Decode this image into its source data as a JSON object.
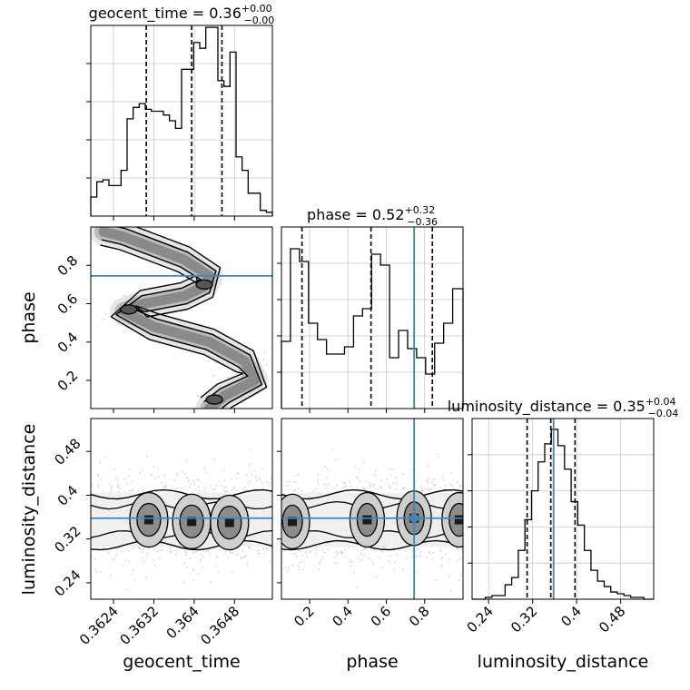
{
  "chart_data": {
    "type": "corner",
    "parameters": [
      "geocent_time",
      "phase",
      "luminosity_distance"
    ],
    "truth": {
      "phase": 0.745,
      "luminosity_distance": 0.358
    },
    "truth_color": "#4682b4",
    "panels": [
      {
        "id": "hist-geocent_time",
        "type": "histogram",
        "title": {
          "main": "geocent_time = 0.36",
          "sup": "+0.00",
          "sub": "−0.00"
        },
        "xlim": [
          0.36195,
          0.36555
        ],
        "ylim": [
          0,
          1
        ],
        "x_ticks": [
          0.3624,
          0.3632,
          0.364,
          0.3648
        ],
        "quantiles": [
          0.36305,
          0.36395,
          0.36455
        ],
        "bin_edges": [
          0.36195,
          0.36207,
          0.36219,
          0.36231,
          0.36243,
          0.36255,
          0.36267,
          0.36279,
          0.36291,
          0.36303,
          0.36315,
          0.36327,
          0.36339,
          0.36351,
          0.36363,
          0.36375,
          0.36387,
          0.36399,
          0.36411,
          0.36423,
          0.36435,
          0.36447,
          0.36459,
          0.36471,
          0.36483,
          0.36495,
          0.36507,
          0.36519,
          0.36531,
          0.36543,
          0.36555
        ],
        "values": [
          0.1,
          0.18,
          0.19,
          0.16,
          0.16,
          0.24,
          0.51,
          0.57,
          0.59,
          0.56,
          0.55,
          0.55,
          0.53,
          0.5,
          0.46,
          0.77,
          0.77,
          0.91,
          0.88,
          0.99,
          0.99,
          0.71,
          0.68,
          0.86,
          0.31,
          0.24,
          0.12,
          0.12,
          0.03,
          0.02
        ]
      },
      {
        "id": "hist-phase",
        "type": "histogram",
        "title": {
          "main": "phase = 0.52",
          "sup": "+0.32",
          "sub": "−0.36"
        },
        "xlim": [
          0.053,
          1.0
        ],
        "ylim": [
          0,
          1
        ],
        "x_ticks": [
          0.2,
          0.4,
          0.6,
          0.8
        ],
        "quantiles": [
          0.16,
          0.52,
          0.84
        ],
        "bin_edges": [
          0.053,
          0.1,
          0.147,
          0.194,
          0.241,
          0.288,
          0.335,
          0.382,
          0.429,
          0.476,
          0.523,
          0.57,
          0.617,
          0.664,
          0.711,
          0.758,
          0.805,
          0.852,
          0.899,
          0.946,
          1.0
        ],
        "values": [
          0.37,
          0.88,
          0.81,
          0.47,
          0.38,
          0.3,
          0.3,
          0.34,
          0.51,
          0.55,
          0.85,
          0.79,
          0.28,
          0.43,
          0.33,
          0.28,
          0.19,
          0.36,
          0.47,
          0.66
        ]
      },
      {
        "id": "hist-luminosity_distance",
        "type": "histogram",
        "title": {
          "main": "luminosity_distance = 0.35",
          "sup": "+0.04",
          "sub": "−0.04"
        },
        "xlim": [
          0.21,
          0.54
        ],
        "ylim": [
          0,
          1
        ],
        "x_ticks": [
          0.24,
          0.32,
          0.4,
          0.48
        ],
        "quantiles": [
          0.31,
          0.353,
          0.397
        ],
        "bin_edges": [
          0.21,
          0.222,
          0.234,
          0.246,
          0.258,
          0.27,
          0.282,
          0.294,
          0.306,
          0.318,
          0.33,
          0.342,
          0.354,
          0.366,
          0.378,
          0.39,
          0.402,
          0.414,
          0.426,
          0.438,
          0.45,
          0.462,
          0.474,
          0.486,
          0.498,
          0.51,
          0.522,
          0.54
        ],
        "values": [
          0.0,
          0.0,
          0.01,
          0.02,
          0.02,
          0.08,
          0.12,
          0.27,
          0.44,
          0.6,
          0.76,
          0.86,
          0.94,
          0.85,
          0.72,
          0.54,
          0.41,
          0.27,
          0.16,
          0.1,
          0.07,
          0.04,
          0.03,
          0.02,
          0.01,
          0.01,
          0.0
        ]
      },
      {
        "id": "density-phase-vs-geocent_time",
        "type": "density2d",
        "xlim": [
          0.36195,
          0.36555
        ],
        "ylim": [
          0.053,
          1.0
        ],
        "y_ticks": [
          0.2,
          0.4,
          0.6,
          0.8
        ],
        "ylabel": "phase",
        "ridge": [
          [
            0.3622,
            0.975
          ],
          [
            0.3626,
            0.95
          ],
          [
            0.3631,
            0.9
          ],
          [
            0.3638,
            0.83
          ],
          [
            0.3643,
            0.745
          ],
          [
            0.3642,
            0.69
          ],
          [
            0.3638,
            0.64
          ],
          [
            0.363,
            0.6
          ],
          [
            0.3626,
            0.56
          ],
          [
            0.3632,
            0.48
          ],
          [
            0.3643,
            0.4
          ],
          [
            0.365,
            0.3
          ],
          [
            0.3652,
            0.2
          ],
          [
            0.3646,
            0.12
          ],
          [
            0.3643,
            0.055
          ]
        ],
        "blobs": [
          [
            0.3642,
            0.7
          ],
          [
            0.3627,
            0.57
          ],
          [
            0.3644,
            0.1
          ]
        ]
      },
      {
        "id": "density-luminosity_distance-vs-geocent_time",
        "type": "density2d",
        "xlim": [
          0.36195,
          0.36555
        ],
        "ylim": [
          0.21,
          0.54
        ],
        "x_ticks": [
          0.3624,
          0.3632,
          0.364,
          0.3648
        ],
        "y_ticks": [
          0.24,
          0.32,
          0.4,
          0.48
        ],
        "xlabel": "geocent_time",
        "ylabel": "luminosity_distance",
        "blobs": [
          [
            0.3631,
            0.355
          ],
          [
            0.36395,
            0.352
          ],
          [
            0.3647,
            0.35
          ]
        ]
      },
      {
        "id": "density-luminosity_distance-vs-phase",
        "type": "density2d",
        "xlim": [
          0.053,
          1.0
        ],
        "ylim": [
          0.21,
          0.54
        ],
        "x_ticks": [
          0.2,
          0.4,
          0.6,
          0.8
        ],
        "xlabel": "phase",
        "blobs": [
          [
            0.11,
            0.352
          ],
          [
            0.5,
            0.355
          ],
          [
            0.745,
            0.358
          ],
          [
            0.98,
            0.355
          ]
        ]
      }
    ]
  }
}
